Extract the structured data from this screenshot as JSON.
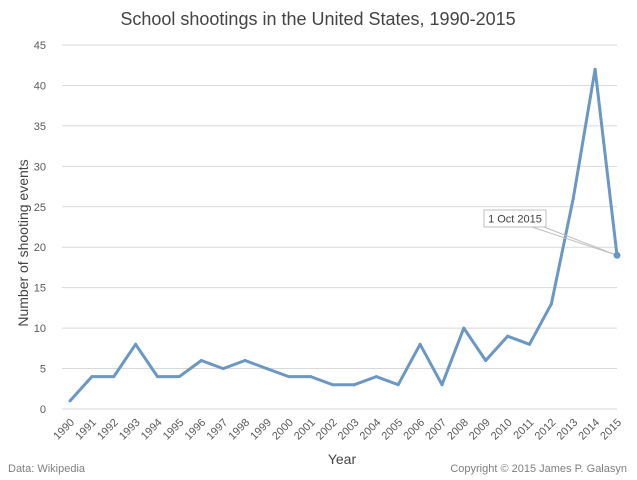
{
  "chart_data": {
    "type": "line",
    "title": "School shootings in the United States, 1990-2015",
    "xlabel": "Year",
    "ylabel": "Number of shooting events",
    "ylim": [
      0,
      45
    ],
    "yticks": [
      "0",
      "5",
      "10",
      "15",
      "20",
      "25",
      "30",
      "35",
      "40",
      "45"
    ],
    "grid": true,
    "categories": [
      "1990",
      "1991",
      "1992",
      "1993",
      "1994",
      "1995",
      "1996",
      "1997",
      "1998",
      "1999",
      "2000",
      "2001",
      "2002",
      "2003",
      "2004",
      "2005",
      "2006",
      "2007",
      "2008",
      "2009",
      "2010",
      "2011",
      "2012",
      "2013",
      "2014",
      "2015"
    ],
    "series": [
      {
        "name": "School shootings",
        "color": "#6a97c4",
        "values": [
          1,
          4,
          4,
          8,
          4,
          4,
          6,
          5,
          6,
          5,
          4,
          4,
          3,
          3,
          4,
          3,
          8,
          3,
          10,
          6,
          9,
          8,
          13,
          26,
          42,
          19
        ]
      }
    ],
    "annotation": {
      "text": "1 Oct 2015",
      "category": "2015",
      "value": 19
    }
  },
  "footer": {
    "source": "Data: Wikipedia",
    "copyright": "Copyright © 2015 James P. Galasyn"
  }
}
